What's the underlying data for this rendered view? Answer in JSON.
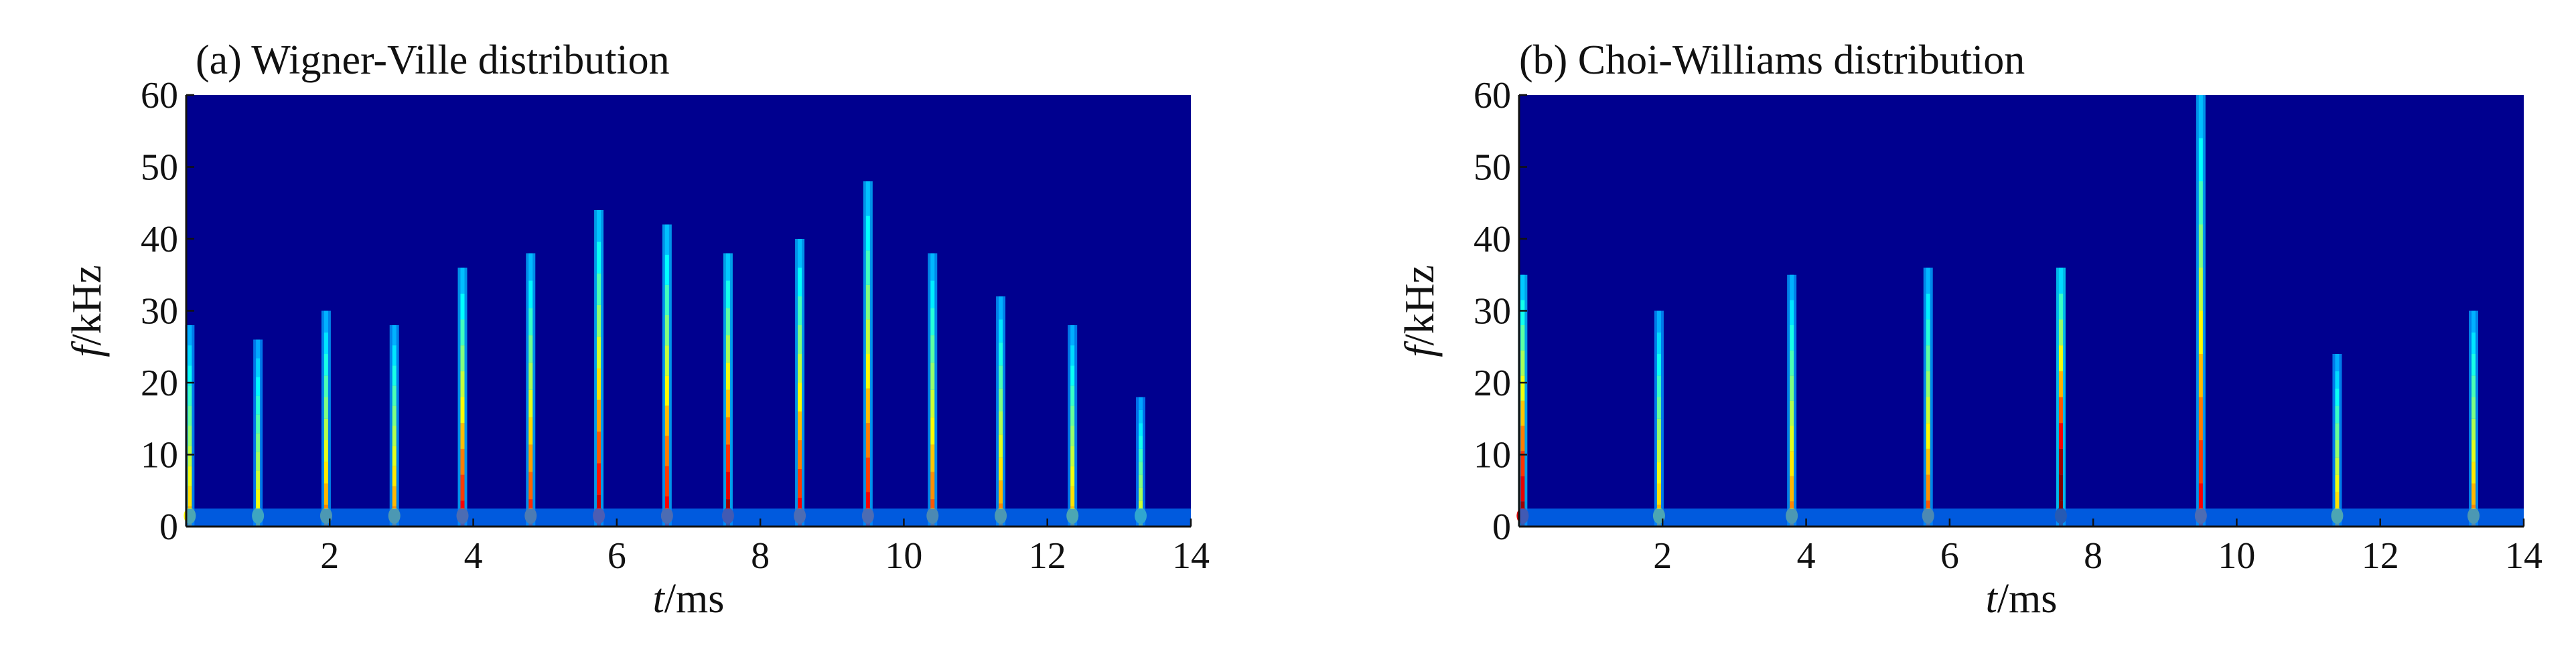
{
  "chart_data": [
    {
      "type": "heatmap",
      "title": "(a) Wigner-Ville distribution",
      "xlabel_var": "t",
      "xlabel_unit": "/ms",
      "ylabel_var": "f",
      "ylabel_unit": "/kHz",
      "xlim": [
        0,
        14
      ],
      "ylim": [
        0,
        60
      ],
      "xticks": [
        2,
        4,
        6,
        8,
        10,
        12,
        14
      ],
      "yticks": [
        0,
        10,
        20,
        30,
        40,
        50,
        60
      ],
      "colormap": [
        "#00008f",
        "#0000ff",
        "#0080ff",
        "#00ffff",
        "#80ff80",
        "#ffff00",
        "#ff8000",
        "#ff0000",
        "#800000"
      ],
      "background_color": "#00008f",
      "ridges": [
        {
          "t": 0.05,
          "f_max": 28,
          "intensity": 0.5
        },
        {
          "t": 1.0,
          "f_max": 26,
          "intensity": 0.45
        },
        {
          "t": 1.95,
          "f_max": 30,
          "intensity": 0.55
        },
        {
          "t": 2.9,
          "f_max": 28,
          "intensity": 0.55
        },
        {
          "t": 3.85,
          "f_max": 36,
          "intensity": 0.7
        },
        {
          "t": 4.8,
          "f_max": 38,
          "intensity": 0.65
        },
        {
          "t": 5.75,
          "f_max": 44,
          "intensity": 0.75
        },
        {
          "t": 6.7,
          "f_max": 42,
          "intensity": 0.7
        },
        {
          "t": 7.55,
          "f_max": 38,
          "intensity": 0.8
        },
        {
          "t": 8.55,
          "f_max": 40,
          "intensity": 0.7
        },
        {
          "t": 9.5,
          "f_max": 48,
          "intensity": 0.7
        },
        {
          "t": 10.4,
          "f_max": 38,
          "intensity": 0.6
        },
        {
          "t": 11.35,
          "f_max": 32,
          "intensity": 0.55
        },
        {
          "t": 12.35,
          "f_max": 28,
          "intensity": 0.5
        },
        {
          "t": 13.3,
          "f_max": 18,
          "intensity": 0.4
        }
      ]
    },
    {
      "type": "heatmap",
      "title": "(b) Choi-Williams distribution",
      "xlabel_var": "t",
      "xlabel_unit": "/ms",
      "ylabel_var": "f",
      "ylabel_unit": "/kHz",
      "xlim": [
        0,
        14
      ],
      "ylim": [
        0,
        60
      ],
      "xticks": [
        2,
        4,
        6,
        8,
        10,
        12,
        14
      ],
      "yticks": [
        0,
        10,
        20,
        30,
        40,
        50,
        60
      ],
      "colormap": [
        "#00008f",
        "#0000ff",
        "#0080ff",
        "#00ffff",
        "#80ff80",
        "#ffff00",
        "#ff8000",
        "#ff0000",
        "#800000"
      ],
      "background_color": "#00008f",
      "ridges": [
        {
          "t": 0.05,
          "f_max": 35,
          "intensity": 0.8
        },
        {
          "t": 1.95,
          "f_max": 30,
          "intensity": 0.5
        },
        {
          "t": 3.8,
          "f_max": 35,
          "intensity": 0.55
        },
        {
          "t": 5.7,
          "f_max": 36,
          "intensity": 0.6
        },
        {
          "t": 7.55,
          "f_max": 36,
          "intensity": 1.0
        },
        {
          "t": 9.5,
          "f_max": 60,
          "intensity": 0.7
        },
        {
          "t": 11.4,
          "f_max": 24,
          "intensity": 0.5
        },
        {
          "t": 13.3,
          "f_max": 30,
          "intensity": 0.55
        }
      ]
    }
  ]
}
